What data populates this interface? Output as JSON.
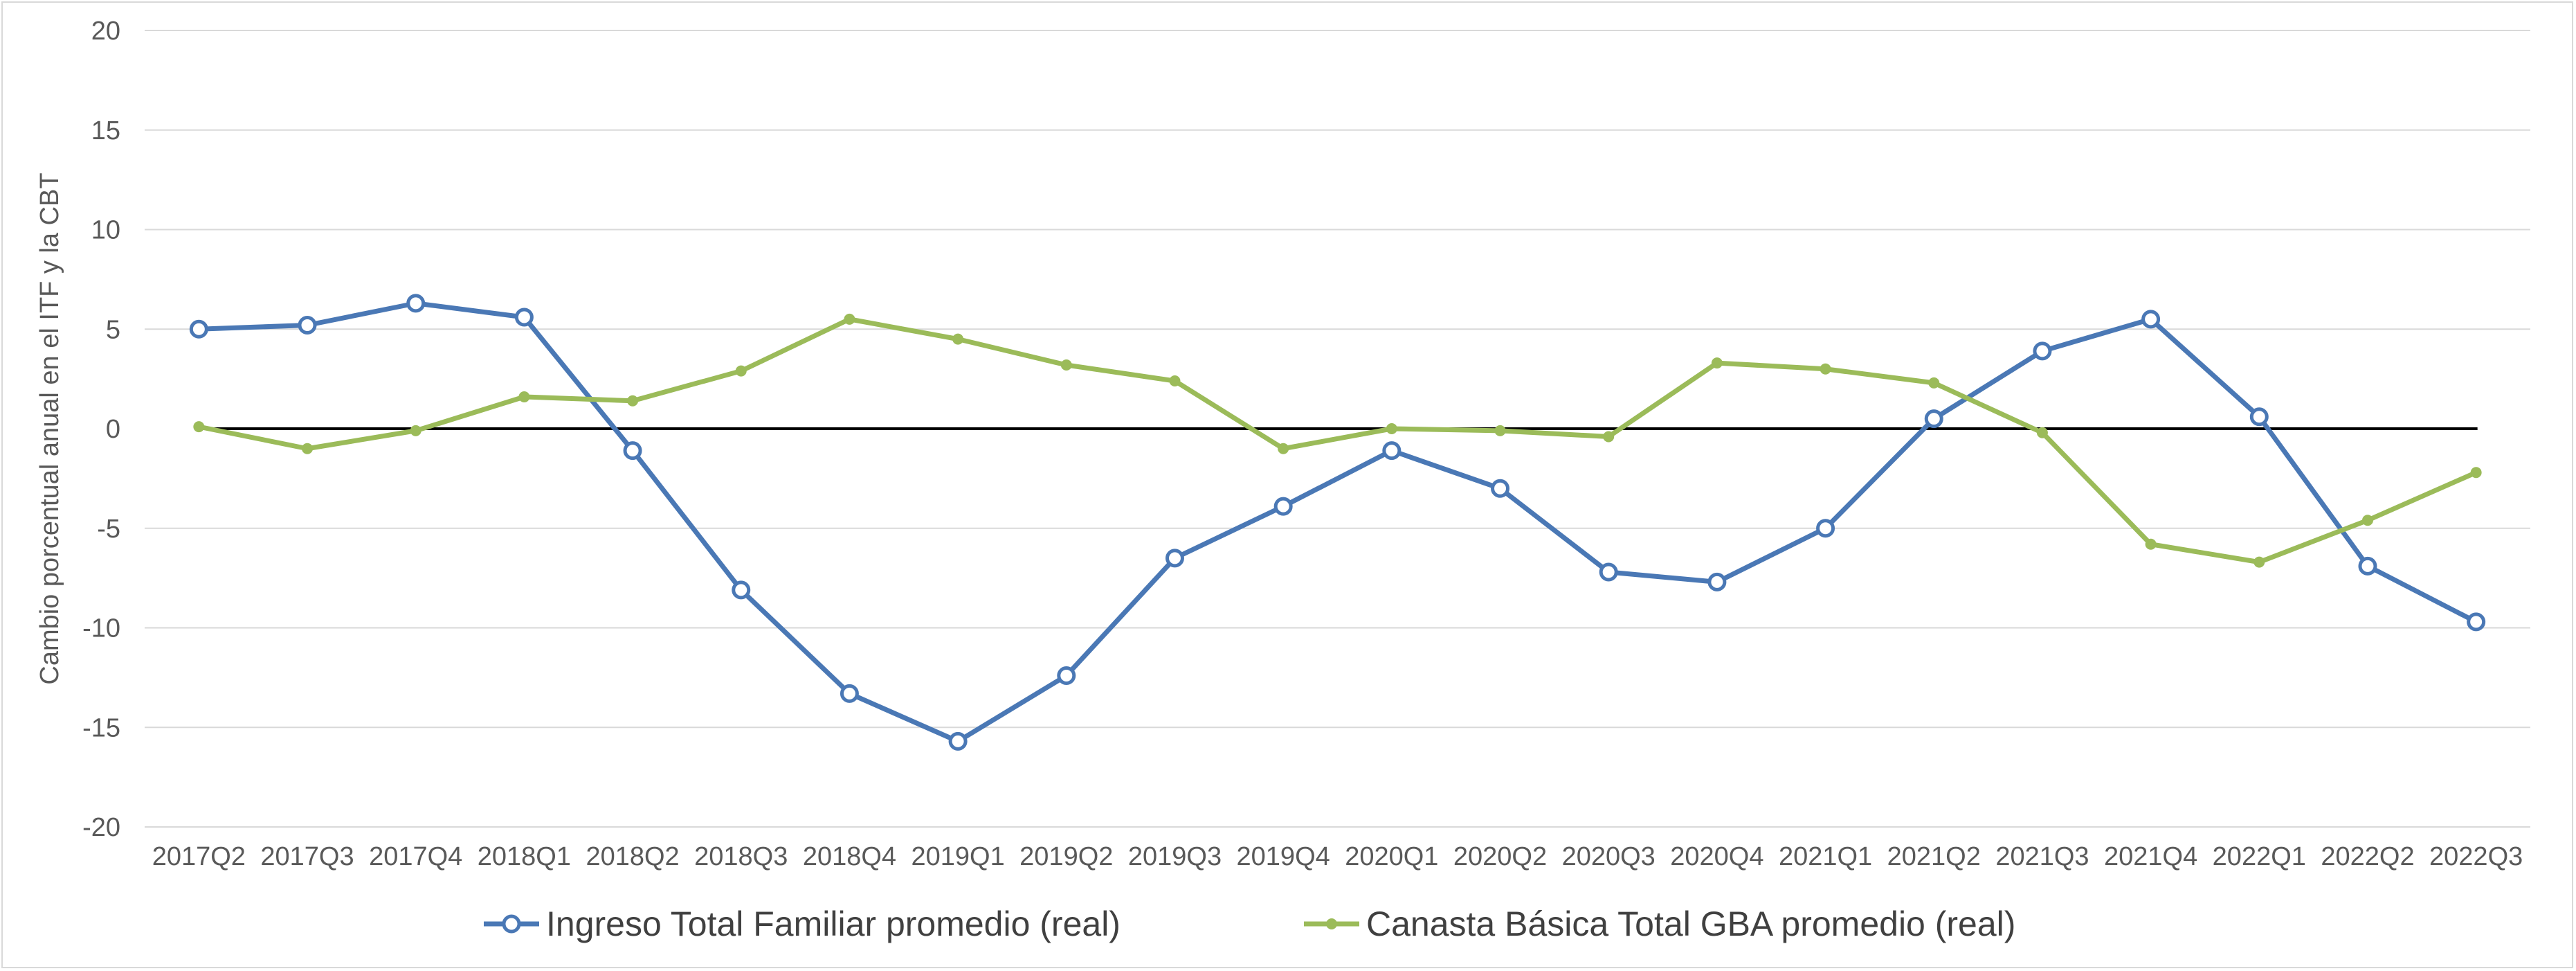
{
  "chart_data": {
    "type": "line",
    "title": "",
    "xlabel": "",
    "ylabel": "Cambio porcentual anual en el ITF y la CBT",
    "ylim": [
      -20,
      20
    ],
    "yticks": [
      20,
      15,
      10,
      5,
      0,
      -5,
      -10,
      -15,
      -20
    ],
    "grid": true,
    "legend_position": "bottom",
    "categories": [
      "2017Q2",
      "2017Q3",
      "2017Q4",
      "2018Q1",
      "2018Q2",
      "2018Q3",
      "2018Q4",
      "2019Q1",
      "2019Q2",
      "2019Q3",
      "2019Q4",
      "2020Q1",
      "2020Q2",
      "2020Q3",
      "2020Q4",
      "2021Q1",
      "2021Q2",
      "2021Q3",
      "2021Q4",
      "2022Q1",
      "2022Q2",
      "2022Q3"
    ],
    "series": [
      {
        "name": "Ingreso Total Familiar promedio (real)",
        "color": "#4a78b5",
        "marker": "open-circle",
        "values": [
          5.0,
          5.2,
          6.3,
          5.6,
          -1.1,
          -8.1,
          -13.3,
          -15.7,
          -12.4,
          -6.5,
          -3.9,
          -1.1,
          -3.0,
          -7.2,
          -7.7,
          -5.0,
          0.5,
          3.9,
          5.5,
          0.6,
          -6.9,
          -9.7
        ]
      },
      {
        "name": "Canasta Básica Total GBA promedio (real)",
        "color": "#9bbb59",
        "marker": "dot",
        "values": [
          0.1,
          -1.0,
          -0.1,
          1.6,
          1.4,
          2.9,
          5.5,
          4.5,
          3.2,
          2.4,
          -1.0,
          0.0,
          -0.1,
          -0.4,
          3.3,
          3.0,
          2.3,
          -0.2,
          -5.8,
          -6.7,
          -4.6,
          -2.2
        ]
      }
    ]
  }
}
